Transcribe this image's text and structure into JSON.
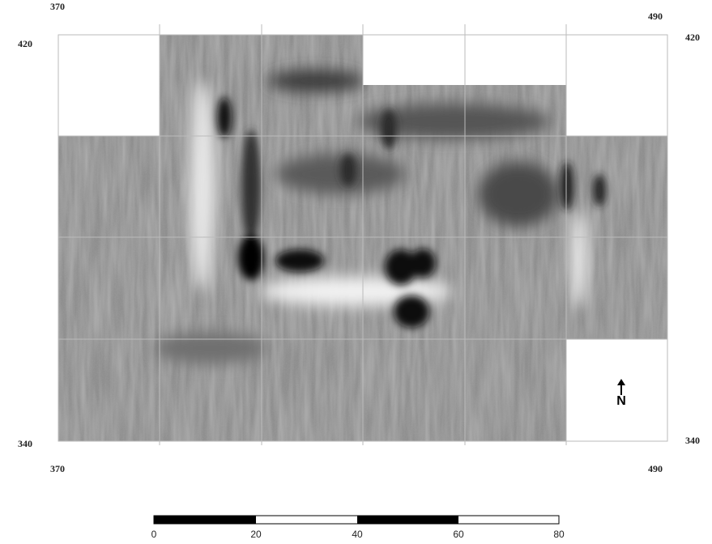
{
  "coordinates": {
    "top_left_x": "370",
    "top_right_x": "490",
    "left_top_y": "420",
    "right_top_y": "420",
    "left_bottom_y": "340",
    "right_bottom_y": "340",
    "bottom_left_x": "370",
    "bottom_right_x": "490"
  },
  "north": "N",
  "scale_bar": {
    "labels": [
      "0",
      "20",
      "40",
      "60",
      "80"
    ]
  }
}
